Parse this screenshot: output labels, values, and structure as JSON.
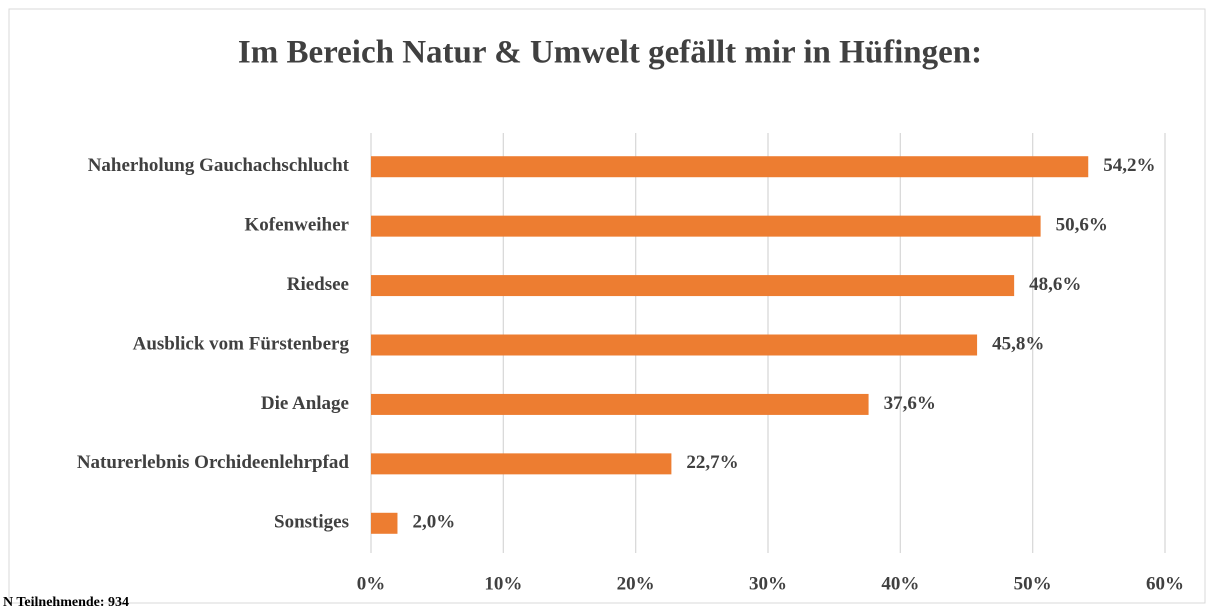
{
  "chart_data": {
    "type": "bar",
    "orientation": "horizontal",
    "title": "Im Bereich Natur & Umwelt gefällt mir in Hüfingen:",
    "categories": [
      "Naherholung Gauchachschlucht",
      "Kofenweiher",
      "Riedsee",
      "Ausblick vom Fürstenberg",
      "Die Anlage",
      "Naturerlebnis Orchideenlehrpfad",
      "Sonstiges"
    ],
    "values": [
      54.2,
      50.6,
      48.6,
      45.8,
      37.6,
      22.7,
      2.0
    ],
    "value_labels": [
      "54,2%",
      "50,6%",
      "48,6%",
      "45,8%",
      "37,6%",
      "22,7%",
      "2,0%"
    ],
    "color": "#ed7d31",
    "xlim": [
      0,
      60
    ],
    "xticks": [
      {
        "value": 0,
        "label": "0%"
      },
      {
        "value": 10,
        "label": "10%"
      },
      {
        "value": 20,
        "label": "20%"
      },
      {
        "value": 30,
        "label": "30%"
      },
      {
        "value": 40,
        "label": "40%"
      },
      {
        "value": 50,
        "label": "50%"
      },
      {
        "value": 60,
        "label": "60%"
      }
    ],
    "grid": true,
    "footnote": "N Teilnehmende: 934"
  }
}
